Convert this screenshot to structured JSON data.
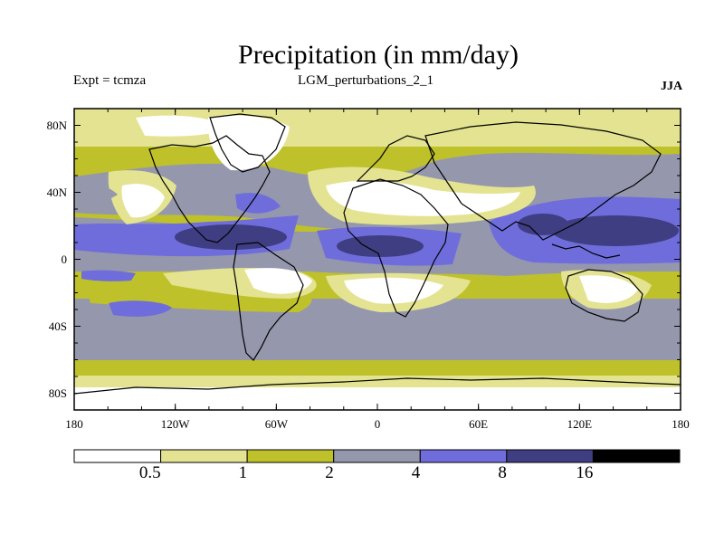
{
  "title": "Precipitation (in mm/day)",
  "experiment": "Expt = tcmza",
  "run_name": "LGM_perturbations_2_1",
  "season": "JJA",
  "lat_ticks": [
    {
      "label": "80N",
      "lat": 80
    },
    {
      "label": "40N",
      "lat": 40
    },
    {
      "label": "0",
      "lat": 0
    },
    {
      "label": "40S",
      "lat": -40
    },
    {
      "label": "80S",
      "lat": -80
    }
  ],
  "lon_ticks": [
    {
      "label": "180",
      "lon": -180
    },
    {
      "label": "120W",
      "lon": -120
    },
    {
      "label": "60W",
      "lon": -60
    },
    {
      "label": "0",
      "lon": 0
    },
    {
      "label": "60E",
      "lon": 60
    },
    {
      "label": "120E",
      "lon": 120
    },
    {
      "label": "180",
      "lon": 180
    }
  ],
  "legend": {
    "boundaries": [
      "0.5",
      "1",
      "2",
      "4",
      "8",
      "16"
    ],
    "colors": [
      "#ffffff",
      "#e3e391",
      "#bfc12b",
      "#9597ad",
      "#6e6ddb",
      "#3f3e82",
      "#000000"
    ]
  },
  "colors": {
    "white": "#ffffff",
    "pale": "#e3e391",
    "olive": "#bfc12b",
    "gray": "#9597ad",
    "blue": "#6e6ddb",
    "navy": "#3f3e82"
  }
}
